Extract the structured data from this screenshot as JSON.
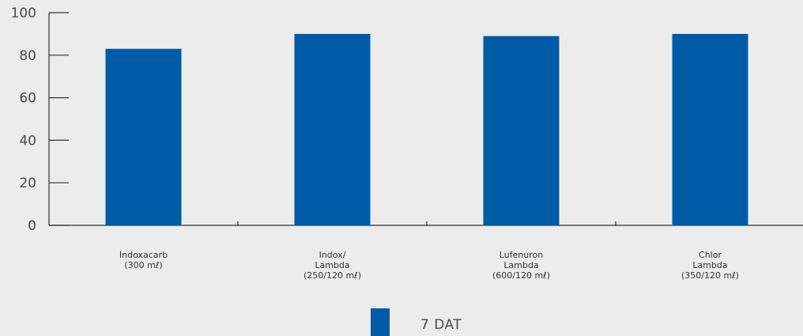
{
  "chart_data": {
    "type": "bar",
    "title": "",
    "xlabel": "",
    "ylabel": "",
    "ylim": [
      0,
      100
    ],
    "yticks": [
      0,
      20,
      40,
      60,
      80,
      100
    ],
    "categories": [
      [
        "Indoxacarb",
        "(300 mℓ)"
      ],
      [
        "Indox/",
        "Lambda",
        "(250/120 mℓ)"
      ],
      [
        "Lufenuron",
        "Lambda",
        "(600/120 mℓ)"
      ],
      [
        "Chlor",
        "Lambda",
        "(350/120 mℓ)"
      ]
    ],
    "series": [
      {
        "name": "7 DAT",
        "values": [
          83,
          90,
          89,
          90
        ],
        "color": "#005ba6"
      }
    ],
    "grid": false,
    "legend_position": "bottom-center"
  },
  "colors": {
    "background": "#ececec",
    "axis": "#333333",
    "bar": "#005ba6"
  }
}
